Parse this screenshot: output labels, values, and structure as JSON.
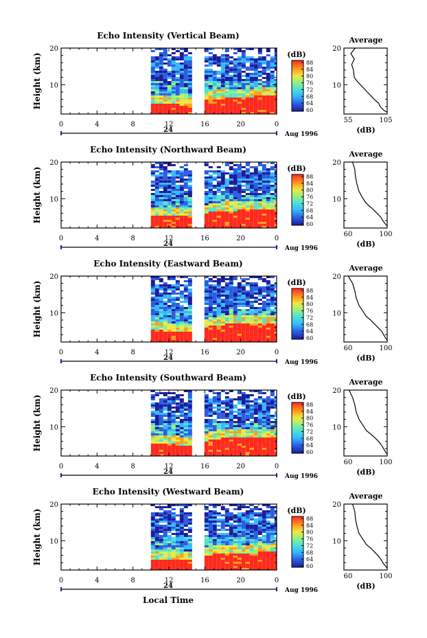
{
  "xlabel": "Local Time",
  "x_ticks": [
    "0",
    "4",
    "8",
    "12",
    "16",
    "20",
    "0"
  ],
  "date_marker": "24",
  "date_label": "Aug 1996",
  "ylabel": "Height (km)",
  "y_ticks": [
    "10",
    "20"
  ],
  "colorbar": {
    "unit": "(dB)",
    "ticks": [
      "88",
      "84",
      "80",
      "76",
      "72",
      "68",
      "64",
      "60"
    ]
  },
  "profile": {
    "title": "Average",
    "xlabel": "(dB)"
  },
  "chart_data": [
    {
      "type": "heatmap",
      "title": "Echo Intensity (Vertical Beam)",
      "xlabel": "Local Time",
      "ylabel": "Height (km)",
      "xlim": [
        0,
        24
      ],
      "ylim": [
        2,
        20
      ],
      "zlim": [
        60,
        92
      ],
      "data_start_hour": 10,
      "gap_hours": [
        15,
        15.6
      ],
      "boundary_km": [
        [
          10,
          5.2
        ],
        [
          15,
          4.6
        ],
        [
          16,
          6.3
        ],
        [
          24,
          7.4
        ]
      ],
      "profile": {
        "xlim": [
          55,
          105
        ],
        "x_ticks": [
          "55",
          "105"
        ],
        "points": [
          [
            68,
            20
          ],
          [
            63,
            18.5
          ],
          [
            67,
            17
          ],
          [
            64,
            15.5
          ],
          [
            66,
            14
          ],
          [
            67,
            12
          ],
          [
            70,
            11
          ],
          [
            74,
            10
          ],
          [
            78,
            9
          ],
          [
            82,
            8
          ],
          [
            86,
            7
          ],
          [
            90,
            6
          ],
          [
            95,
            5
          ],
          [
            97,
            4
          ],
          [
            101,
            3
          ],
          [
            105,
            2.5
          ]
        ]
      }
    },
    {
      "type": "heatmap",
      "title": "Echo Intensity (Northward Beam)",
      "xlabel": "Local Time",
      "ylabel": "Height (km)",
      "xlim": [
        0,
        24
      ],
      "ylim": [
        2,
        20
      ],
      "zlim": [
        60,
        92
      ],
      "data_start_hour": 10,
      "gap_hours": [
        15,
        15.6
      ],
      "boundary_km": [
        [
          10,
          5.8
        ],
        [
          15,
          5.3
        ],
        [
          17,
          7.0
        ],
        [
          24,
          7.2
        ]
      ],
      "profile": {
        "xlim": [
          40,
          100
        ],
        "x_ticks": [
          "60",
          "100"
        ],
        "points": [
          [
            52,
            20
          ],
          [
            55,
            18
          ],
          [
            56,
            16
          ],
          [
            58,
            14
          ],
          [
            61,
            12
          ],
          [
            65,
            10.5
          ],
          [
            70,
            9
          ],
          [
            75,
            8
          ],
          [
            81,
            7
          ],
          [
            86,
            6
          ],
          [
            91,
            5
          ],
          [
            94,
            4
          ],
          [
            98,
            3
          ],
          [
            100,
            2.5
          ]
        ]
      }
    },
    {
      "type": "heatmap",
      "title": "Echo Intensity (Eastward Beam)",
      "xlabel": "Local Time",
      "ylabel": "Height (km)",
      "xlim": [
        0,
        24
      ],
      "ylim": [
        2,
        20
      ],
      "zlim": [
        60,
        92
      ],
      "data_start_hour": 10,
      "gap_hours": [
        15,
        15.6
      ],
      "boundary_km": [
        [
          10,
          5.5
        ],
        [
          15,
          5.1
        ],
        [
          17,
          7.0
        ],
        [
          24,
          7.5
        ]
      ],
      "profile": {
        "xlim": [
          40,
          100
        ],
        "x_ticks": [
          "60",
          "100"
        ],
        "points": [
          [
            46,
            20
          ],
          [
            52,
            18
          ],
          [
            55,
            16
          ],
          [
            57,
            14
          ],
          [
            61,
            12
          ],
          [
            66,
            10.5
          ],
          [
            71,
            9
          ],
          [
            77,
            8
          ],
          [
            82,
            7
          ],
          [
            87,
            6
          ],
          [
            92,
            5
          ],
          [
            95,
            4
          ],
          [
            98,
            3
          ],
          [
            100,
            2.5
          ]
        ]
      }
    },
    {
      "type": "heatmap",
      "title": "Echo Intensity (Southward Beam)",
      "xlabel": "Local Time",
      "ylabel": "Height (km)",
      "xlim": [
        0,
        24
      ],
      "ylim": [
        2,
        20
      ],
      "zlim": [
        60,
        92
      ],
      "data_start_hour": 10,
      "gap_hours": [
        15,
        15.6
      ],
      "boundary_km": [
        [
          10,
          5.6
        ],
        [
          15,
          5.2
        ],
        [
          17,
          7.0
        ],
        [
          24,
          7.6
        ]
      ],
      "profile": {
        "xlim": [
          40,
          100
        ],
        "x_ticks": [
          "60",
          "100"
        ],
        "points": [
          [
            47,
            20
          ],
          [
            52,
            18
          ],
          [
            55,
            16
          ],
          [
            57,
            14
          ],
          [
            61,
            12
          ],
          [
            66,
            10.5
          ],
          [
            71,
            9
          ],
          [
            77,
            8
          ],
          [
            83,
            7
          ],
          [
            88,
            6
          ],
          [
            92,
            5
          ],
          [
            95,
            4
          ],
          [
            98,
            3
          ],
          [
            100,
            2.5
          ]
        ]
      }
    },
    {
      "type": "heatmap",
      "title": "Echo Intensity (Westward Beam)",
      "xlabel": "Local Time",
      "ylabel": "Height (km)",
      "xlim": [
        0,
        24
      ],
      "ylim": [
        2,
        20
      ],
      "zlim": [
        60,
        92
      ],
      "data_start_hour": 10,
      "gap_hours": [
        15,
        15.6
      ],
      "boundary_km": [
        [
          10,
          5.4
        ],
        [
          15,
          5.0
        ],
        [
          17,
          6.8
        ],
        [
          24,
          7.2
        ]
      ],
      "profile": {
        "xlim": [
          40,
          100
        ],
        "x_ticks": [
          "60",
          "100"
        ],
        "points": [
          [
            52,
            20
          ],
          [
            55,
            18
          ],
          [
            56,
            16
          ],
          [
            58,
            14
          ],
          [
            61,
            12
          ],
          [
            66,
            10.5
          ],
          [
            71,
            9
          ],
          [
            77,
            8
          ],
          [
            82,
            7
          ],
          [
            87,
            6
          ],
          [
            91,
            5
          ],
          [
            94,
            4
          ],
          [
            98,
            3
          ],
          [
            100,
            2.5
          ]
        ]
      }
    }
  ]
}
